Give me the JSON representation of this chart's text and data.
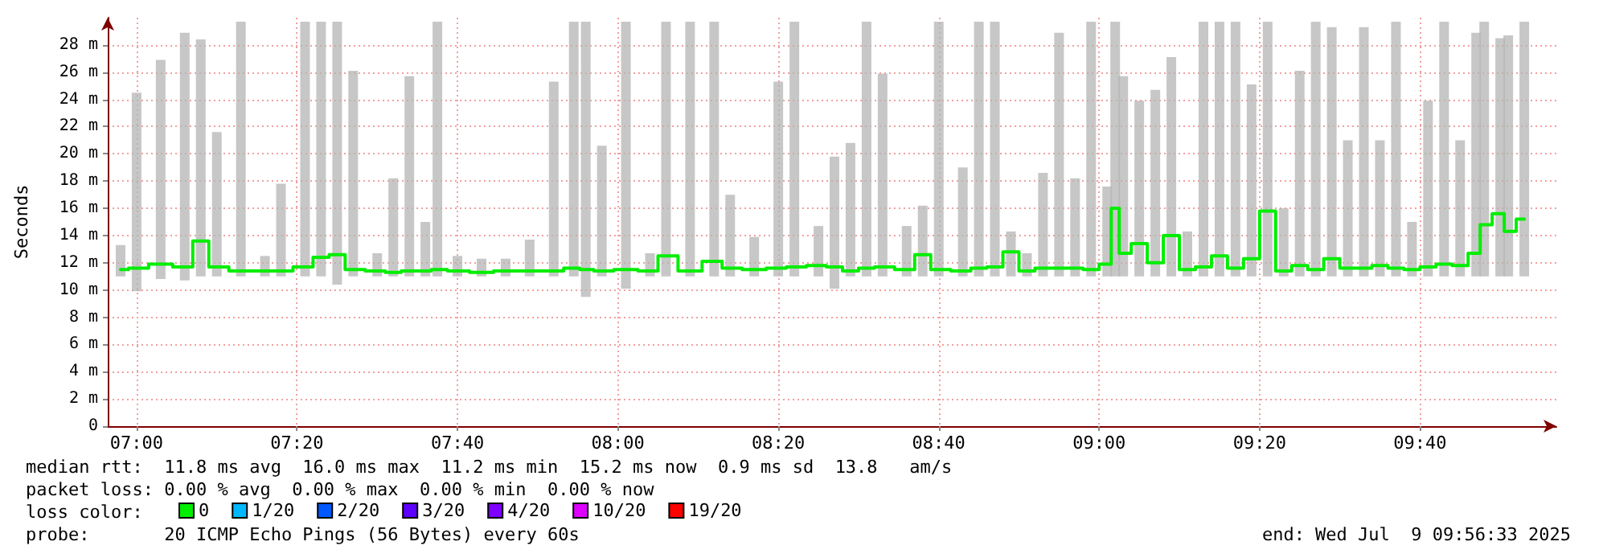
{
  "chart_data": {
    "type": "step",
    "ylabel": "Seconds",
    "legend_title": "loss color:",
    "legend": "bottom",
    "grid": true,
    "marker": "none",
    "line_style": "solid",
    "xlim": [
      6.94,
      9.95
    ],
    "xticks": [
      {
        "value": 7,
        "label": "07:00"
      },
      {
        "value": 7.3333,
        "label": "07:20"
      },
      {
        "value": 7.6667,
        "label": "07:40"
      },
      {
        "value": 8,
        "label": "08:00"
      },
      {
        "value": 8.3333,
        "label": "08:20"
      },
      {
        "value": 8.6667,
        "label": "08:40"
      },
      {
        "value": 9,
        "label": "09:00"
      },
      {
        "value": 9.3333,
        "label": "09:20"
      },
      {
        "value": 9.6667,
        "label": "09:40"
      }
    ],
    "ylim": [
      0,
      30
    ],
    "yticks": [
      0,
      {
        "value": 2,
        "label": "2 m"
      },
      {
        "value": 4,
        "label": "4 m"
      },
      {
        "value": 6,
        "label": "6 m"
      },
      {
        "value": 8,
        "label": "8 m"
      },
      {
        "value": 10,
        "label": "10 m"
      },
      {
        "value": 12,
        "label": "12 m"
      },
      {
        "value": 14,
        "label": "14 m"
      },
      {
        "value": 16,
        "label": "16 m"
      },
      {
        "value": 18,
        "label": "18 m"
      },
      {
        "value": 20,
        "label": "20 m"
      },
      {
        "value": 22,
        "label": "22 m"
      },
      {
        "value": 24,
        "label": "24 m"
      },
      {
        "value": 26,
        "label": "26 m"
      },
      {
        "value": 28,
        "label": "28 m"
      }
    ],
    "x": [
      6.9667,
      7,
      7.05,
      7.1,
      7.1333,
      7.1667,
      7.2167,
      7.2667,
      7.3,
      7.35,
      7.3833,
      7.4167,
      7.45,
      7.5,
      7.5333,
      7.5667,
      7.6,
      7.625,
      7.6667,
      7.7167,
      7.7667,
      7.8167,
      7.8667,
      7.9083,
      7.9333,
      7.9667,
      8.0167,
      8.0667,
      8.1,
      8.15,
      8.2,
      8.2333,
      8.2833,
      8.3333,
      8.3667,
      8.4167,
      8.45,
      8.4833,
      8.5167,
      8.55,
      8.6,
      8.6333,
      8.6667,
      8.7167,
      8.75,
      8.7833,
      8.8167,
      8.85,
      8.8833,
      8.9167,
      8.95,
      8.9833,
      9.0167,
      9.0333,
      9.05,
      9.0833,
      9.1167,
      9.15,
      9.1833,
      9.2167,
      9.25,
      9.2833,
      9.3167,
      9.35,
      9.3833,
      9.4167,
      9.45,
      9.4833,
      9.5167,
      9.55,
      9.5833,
      9.6167,
      9.65,
      9.6833,
      9.7167,
      9.75,
      9.7833,
      9.8,
      9.8333,
      9.85,
      9.8833
    ],
    "series": [
      {
        "name": "0",
        "color": "#00ee00",
        "values": [
          11.5,
          11.6,
          11.9,
          11.7,
          13.6,
          11.7,
          11.4,
          11.4,
          11.4,
          11.7,
          12.4,
          12.6,
          11.5,
          11.4,
          11.3,
          11.4,
          11.4,
          11.5,
          11.4,
          11.3,
          11.4,
          11.4,
          11.4,
          11.6,
          11.5,
          11.4,
          11.5,
          11.4,
          12.5,
          11.4,
          12.1,
          11.6,
          11.5,
          11.6,
          11.7,
          11.8,
          11.7,
          11.4,
          11.6,
          11.7,
          11.5,
          12.6,
          11.5,
          11.4,
          11.6,
          11.7,
          12.8,
          11.4,
          11.6,
          11.6,
          11.6,
          11.5,
          11.9,
          16.0,
          12.7,
          13.4,
          12.0,
          14.0,
          11.5,
          11.7,
          12.5,
          11.6,
          12.3,
          15.8,
          11.4,
          11.8,
          11.5,
          12.3,
          11.6,
          11.6,
          11.8,
          11.6,
          11.5,
          11.7,
          11.9,
          11.8,
          12.7,
          14.8,
          15.6,
          14.3,
          15.2
        ],
        "upper": [
          13.3,
          24.5,
          26.9,
          28.9,
          28.4,
          21.6,
          29.7,
          12.5,
          17.8,
          29.7,
          29.7,
          29.7,
          26.1,
          12.7,
          18.2,
          25.7,
          15.0,
          29.7,
          12.5,
          12.3,
          12.3,
          13.7,
          25.3,
          29.7,
          29.7,
          20.6,
          29.7,
          12.7,
          29.7,
          29.7,
          29.7,
          17.0,
          13.9,
          25.3,
          29.7,
          14.7,
          19.8,
          20.8,
          29.7,
          25.9,
          14.7,
          16.2,
          29.7,
          19.0,
          29.7,
          29.7,
          14.3,
          12.7,
          18.6,
          28.9,
          18.2,
          29.7,
          17.6,
          29.7,
          25.7,
          23.9,
          24.7,
          27.1,
          14.3,
          29.7,
          29.7,
          29.7,
          25.1,
          29.7,
          16.0,
          26.1,
          29.7,
          29.3,
          21.0,
          29.3,
          21.0,
          29.7,
          15.0,
          23.9,
          29.7,
          21.0,
          28.9,
          29.7,
          28.5,
          28.7,
          29.7
        ],
        "lower": [
          11.0,
          9.9,
          10.8,
          10.7,
          11.0,
          11.0,
          11.0,
          11.0,
          11.0,
          11.0,
          11.0,
          10.4,
          11.0,
          11.0,
          11.0,
          11.0,
          11.0,
          11.0,
          11.0,
          11.0,
          11.0,
          11.0,
          11.0,
          11.0,
          9.5,
          11.0,
          10.1,
          11.0,
          11.0,
          11.0,
          11.0,
          11.0,
          11.0,
          11.0,
          11.0,
          11.0,
          10.1,
          11.0,
          11.0,
          11.0,
          11.0,
          11.0,
          11.0,
          11.0,
          11.0,
          11.0,
          11.0,
          11.0,
          11.0,
          11.0,
          11.0,
          11.0,
          11.0,
          11.0,
          11.0,
          11.0,
          11.0,
          11.0,
          11.0,
          11.0,
          11.0,
          11.0,
          11.0,
          11.0,
          11.0,
          11.0,
          11.0,
          11.0,
          11.0,
          11.0,
          11.0,
          11.0,
          11.0,
          11.0,
          11.0,
          11.0,
          11.0,
          11.0,
          11.0,
          11.0,
          11.0
        ]
      },
      {
        "name": "1/20",
        "color": "#00b8ff",
        "values": [
          null,
          null,
          null,
          null,
          null,
          null,
          null,
          null,
          null,
          null,
          null,
          null,
          null,
          null,
          null,
          null,
          null,
          null,
          null,
          null,
          null,
          null,
          null,
          null,
          null,
          null,
          null,
          null,
          null,
          null,
          null,
          null,
          null,
          null,
          null,
          null,
          null,
          null,
          null,
          null,
          null,
          null,
          null,
          null,
          null,
          null,
          null,
          null,
          null,
          null,
          null,
          null,
          null,
          null,
          null,
          null,
          null,
          null,
          null,
          null,
          null,
          null,
          null,
          null,
          null,
          null,
          null,
          null,
          null,
          null,
          null,
          null,
          null,
          null,
          null,
          null,
          null,
          null,
          null,
          null,
          null
        ]
      },
      {
        "name": "2/20",
        "color": "#0059ff",
        "values": [
          null,
          null,
          null,
          null,
          null,
          null,
          null,
          null,
          null,
          null,
          null,
          null,
          null,
          null,
          null,
          null,
          null,
          null,
          null,
          null,
          null,
          null,
          null,
          null,
          null,
          null,
          null,
          null,
          null,
          null,
          null,
          null,
          null,
          null,
          null,
          null,
          null,
          null,
          null,
          null,
          null,
          null,
          null,
          null,
          null,
          null,
          null,
          null,
          null,
          null,
          null,
          null,
          null,
          null,
          null,
          null,
          null,
          null,
          null,
          null,
          null,
          null,
          null,
          null,
          null,
          null,
          null,
          null,
          null,
          null,
          null,
          null,
          null,
          null,
          null,
          null,
          null,
          null,
          null,
          null,
          null
        ]
      },
      {
        "name": "3/20",
        "color": "#5e00ff",
        "values": [
          null,
          null,
          null,
          null,
          null,
          null,
          null,
          null,
          null,
          null,
          null,
          null,
          null,
          null,
          null,
          null,
          null,
          null,
          null,
          null,
          null,
          null,
          null,
          null,
          null,
          null,
          null,
          null,
          null,
          null,
          null,
          null,
          null,
          null,
          null,
          null,
          null,
          null,
          null,
          null,
          null,
          null,
          null,
          null,
          null,
          null,
          null,
          null,
          null,
          null,
          null,
          null,
          null,
          null,
          null,
          null,
          null,
          null,
          null,
          null,
          null,
          null,
          null,
          null,
          null,
          null,
          null,
          null,
          null,
          null,
          null,
          null,
          null,
          null,
          null,
          null,
          null,
          null,
          null,
          null,
          null
        ]
      },
      {
        "name": "4/20",
        "color": "#7e00ff",
        "values": [
          null,
          null,
          null,
          null,
          null,
          null,
          null,
          null,
          null,
          null,
          null,
          null,
          null,
          null,
          null,
          null,
          null,
          null,
          null,
          null,
          null,
          null,
          null,
          null,
          null,
          null,
          null,
          null,
          null,
          null,
          null,
          null,
          null,
          null,
          null,
          null,
          null,
          null,
          null,
          null,
          null,
          null,
          null,
          null,
          null,
          null,
          null,
          null,
          null,
          null,
          null,
          null,
          null,
          null,
          null,
          null,
          null,
          null,
          null,
          null,
          null,
          null,
          null,
          null,
          null,
          null,
          null,
          null,
          null,
          null,
          null,
          null,
          null,
          null,
          null,
          null,
          null,
          null,
          null,
          null,
          null
        ]
      },
      {
        "name": "10/20",
        "color": "#dd00ff",
        "values": [
          null,
          null,
          null,
          null,
          null,
          null,
          null,
          null,
          null,
          null,
          null,
          null,
          null,
          null,
          null,
          null,
          null,
          null,
          null,
          null,
          null,
          null,
          null,
          null,
          null,
          null,
          null,
          null,
          null,
          null,
          null,
          null,
          null,
          null,
          null,
          null,
          null,
          null,
          null,
          null,
          null,
          null,
          null,
          null,
          null,
          null,
          null,
          null,
          null,
          null,
          null,
          null,
          null,
          null,
          null,
          null,
          null,
          null,
          null,
          null,
          null,
          null,
          null,
          null,
          null,
          null,
          null,
          null,
          null,
          null,
          null,
          null,
          null,
          null,
          null,
          null,
          null,
          null,
          null,
          null,
          null
        ]
      },
      {
        "name": "19/20",
        "color": "#ff0000",
        "values": [
          null,
          null,
          null,
          null,
          null,
          null,
          null,
          null,
          null,
          null,
          null,
          null,
          null,
          null,
          null,
          null,
          null,
          null,
          null,
          null,
          null,
          null,
          null,
          null,
          null,
          null,
          null,
          null,
          null,
          null,
          null,
          null,
          null,
          null,
          null,
          null,
          null,
          null,
          null,
          null,
          null,
          null,
          null,
          null,
          null,
          null,
          null,
          null,
          null,
          null,
          null,
          null,
          null,
          null,
          null,
          null,
          null,
          null,
          null,
          null,
          null,
          null,
          null,
          null,
          null,
          null,
          null,
          null,
          null,
          null,
          null,
          null,
          null,
          null,
          null,
          null,
          null,
          null,
          null,
          null,
          null
        ]
      }
    ],
    "annotations": [
      "median rtt:  11.8 ms avg  16.0 ms max  11.2 ms min  15.2 ms now  0.9 ms sd  13.8   am/s",
      "packet loss: 0.00 % avg  0.00 % max  0.00 % min  0.00 % now",
      "probe:       20 ICMP Echo Pings (56 Bytes) every 60s",
      "end: Wed Jul  9 09:56:33 2025"
    ]
  }
}
